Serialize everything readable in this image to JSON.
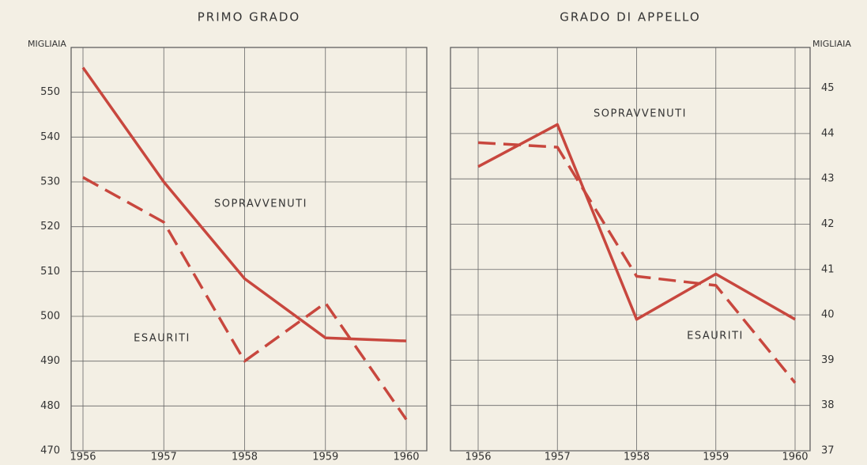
{
  "chart_data": [
    {
      "type": "line",
      "title": "PRIMO GRADO",
      "ylabel": "MIGLIAIA",
      "yaxis_side": "left",
      "categories": [
        "1956",
        "1957",
        "1958",
        "1959",
        "1960"
      ],
      "ylim": [
        470,
        560
      ],
      "yticks": [
        470,
        480,
        490,
        500,
        510,
        520,
        530,
        540,
        550
      ],
      "grid": true,
      "series": [
        {
          "name": "SOPRAVVENUTI",
          "color": "#c8473e",
          "line_style": "solid",
          "values": [
            555.5,
            530,
            508.4,
            495.2,
            494.5
          ]
        },
        {
          "name": "ESAURITI",
          "color": "#c8473e",
          "line_style": "dashed",
          "values": [
            531,
            521,
            490,
            503,
            477
          ]
        }
      ]
    },
    {
      "type": "line",
      "title": "GRADO DI APPELLO",
      "ylabel": "MIGLIAIA",
      "yaxis_side": "right",
      "categories": [
        "1956",
        "1957",
        "1958",
        "1959",
        "1960"
      ],
      "ylim": [
        37,
        45.9
      ],
      "yticks": [
        37,
        38,
        39,
        40,
        41,
        42,
        43,
        44,
        45
      ],
      "grid": true,
      "series": [
        {
          "name": "SOPRAVVENUTI",
          "color": "#c8473e",
          "line_style": "solid",
          "values": [
            43.27,
            44.2,
            39.9,
            40.9,
            39.9
          ]
        },
        {
          "name": "ESAURITI",
          "color": "#c8473e",
          "line_style": "dashed",
          "values": [
            43.8,
            43.7,
            40.85,
            40.65,
            38.5
          ]
        }
      ]
    }
  ]
}
